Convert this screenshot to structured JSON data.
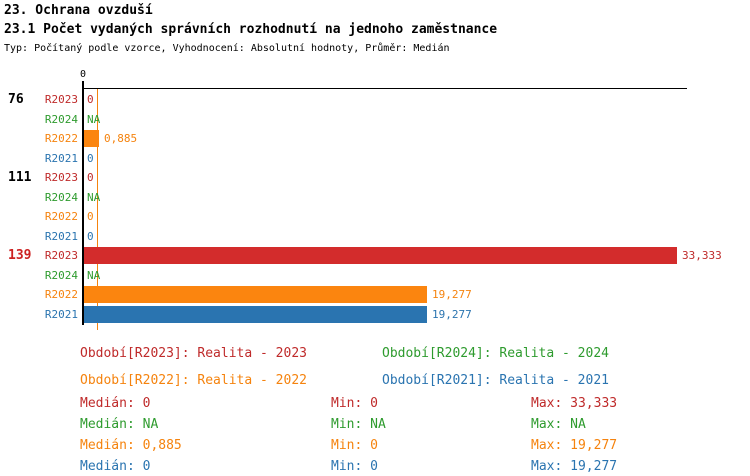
{
  "header": {
    "title1": "23. Ochrana ovzduší",
    "title2": "23.1 Počet vydaných správních rozhodnutí na jednoho zaměstnance",
    "subtitle": "Typ: Počítaný podle vzorce, Vyhodnocení: Absolutní hodnoty, Průměr: Medián"
  },
  "chart_data": {
    "type": "bar",
    "orientation": "horizontal",
    "title": "23.1 Počet vydaných správních rozhodnutí na jednoho zaměstnance",
    "axis": {
      "origin_tick_label": "0",
      "xlim": [
        0,
        33.9
      ],
      "grid": false,
      "median_marker_value": 0.885,
      "median_marker_color": "#f5830e"
    },
    "series_order": [
      "R2023",
      "R2024",
      "R2022",
      "R2021"
    ],
    "series_colors": {
      "R2023": "#bf2a2a",
      "R2024": "#2e9b2e",
      "R2022": "#f5830e",
      "R2021": "#2a74b0"
    },
    "bar_colors": {
      "R2023": "#d32c2c",
      "R2022": "#fb850f",
      "R2021": "#2a74b0"
    },
    "groups": [
      {
        "label": "76",
        "label_color": "#000000",
        "rows": [
          {
            "series": "R2023",
            "value": 0,
            "display": "0"
          },
          {
            "series": "R2024",
            "value": null,
            "display": "NA"
          },
          {
            "series": "R2022",
            "value": 0.885,
            "display": "0,885"
          },
          {
            "series": "R2021",
            "value": 0,
            "display": "0"
          }
        ]
      },
      {
        "label": "111",
        "label_color": "#000000",
        "rows": [
          {
            "series": "R2023",
            "value": 0,
            "display": "0"
          },
          {
            "series": "R2024",
            "value": null,
            "display": "NA"
          },
          {
            "series": "R2022",
            "value": 0,
            "display": "0"
          },
          {
            "series": "R2021",
            "value": 0,
            "display": "0"
          }
        ]
      },
      {
        "label": "139",
        "label_color": "#cc2222",
        "rows": [
          {
            "series": "R2023",
            "value": 33.333,
            "display": "33,333"
          },
          {
            "series": "R2024",
            "value": null,
            "display": "NA"
          },
          {
            "series": "R2022",
            "value": 19.277,
            "display": "19,277"
          },
          {
            "series": "R2021",
            "value": 19.277,
            "display": "19,277"
          }
        ]
      }
    ]
  },
  "legend": {
    "items": [
      {
        "label": "Období[R2023]: Realita - 2023",
        "series": "R2023",
        "color": "#bf2a2a"
      },
      {
        "label": "Období[R2024]: Realita - 2024",
        "series": "R2024",
        "color": "#2e9b2e"
      },
      {
        "label": "Období[R2022]: Realita - 2022",
        "series": "R2022",
        "color": "#f5830e"
      },
      {
        "label": "Období[R2021]: Realita - 2021",
        "series": "R2021",
        "color": "#2a74b0"
      }
    ]
  },
  "stats": {
    "rows": [
      {
        "series": "R2023",
        "color": "#bf2a2a",
        "median": "Medián: 0",
        "min": "Min: 0",
        "max": "Max: 33,333"
      },
      {
        "series": "R2024",
        "color": "#2e9b2e",
        "median": "Medián: NA",
        "min": "Min: NA",
        "max": "Max: NA"
      },
      {
        "series": "R2022",
        "color": "#f5830e",
        "median": "Medián: 0,885",
        "min": "Min: 0",
        "max": "Max: 19,277"
      },
      {
        "series": "R2021",
        "color": "#2a74b0",
        "median": "Medián: 0",
        "min": "Min: 0",
        "max": "Max: 19,277"
      }
    ]
  }
}
